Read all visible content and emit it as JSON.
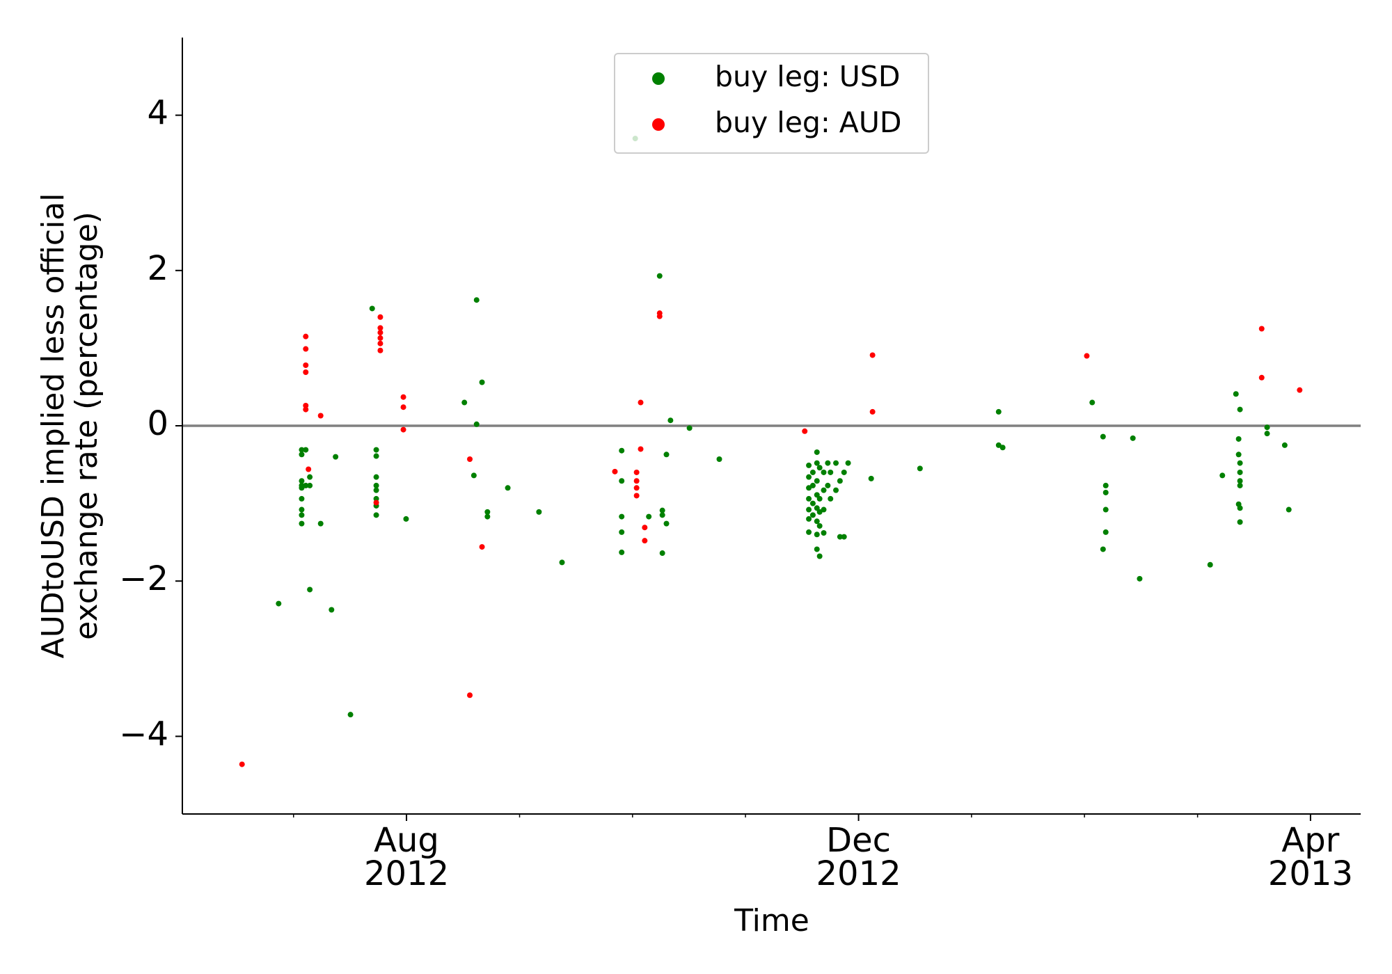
{
  "chart_data": {
    "type": "scatter",
    "xlabel": "Time",
    "ylabel": "AUDtoUSD implied less official\nexchange rate (percentage)",
    "xlim": [
      2012.418,
      2013.287
    ],
    "ylim": [
      -5,
      5
    ],
    "xticks": [
      {
        "value": 2012.5833,
        "label": "Aug\n2012"
      },
      {
        "value": 2012.9167,
        "label": "Dec\n2012"
      },
      {
        "value": 2013.25,
        "label": "Apr\n2013"
      }
    ],
    "xminorticks": [
      2012.5,
      2012.6667,
      2012.75,
      2012.8333,
      2013.0,
      2013.0833,
      2013.1667
    ],
    "yticks": [
      {
        "value": -4,
        "label": "−4"
      },
      {
        "value": -2,
        "label": "−2"
      },
      0,
      2,
      4
    ],
    "hline": 0,
    "hline_color": "#808080",
    "legend": "upper center",
    "series": [
      {
        "name": "buy leg: USD",
        "color": "#008000",
        "x": [
          2012.489,
          2012.506,
          2012.506,
          2012.506,
          2012.506,
          2012.506,
          2012.506,
          2012.506,
          2012.506,
          2012.506,
          2012.509,
          2012.509,
          2012.512,
          2012.512,
          2012.512,
          2012.531,
          2012.52,
          2012.528,
          2012.542,
          2012.558,
          2012.561,
          2012.561,
          2012.561,
          2012.561,
          2012.561,
          2012.561,
          2012.561,
          2012.561,
          2012.583,
          2012.626,
          2012.635,
          2012.635,
          2012.639,
          2012.633,
          2012.643,
          2012.643,
          2012.658,
          2012.681,
          2012.698,
          2012.752,
          2012.742,
          2012.742,
          2012.742,
          2012.742,
          2012.742,
          2012.77,
          2012.778,
          2012.775,
          2012.775,
          2012.772,
          2012.772,
          2012.772,
          2012.762,
          2012.792,
          2012.814,
          2012.88,
          2012.88,
          2012.88,
          2012.88,
          2012.88,
          2012.88,
          2012.88,
          2012.883,
          2012.883,
          2012.883,
          2012.883,
          2012.886,
          2012.886,
          2012.886,
          2012.886,
          2012.886,
          2012.886,
          2012.886,
          2012.886,
          2012.888,
          2012.888,
          2012.888,
          2012.888,
          2012.888,
          2012.891,
          2012.891,
          2012.891,
          2012.891,
          2012.894,
          2012.894,
          2012.896,
          2012.896,
          2012.9,
          2012.9,
          2012.903,
          2012.903,
          2012.906,
          2012.906,
          2012.909,
          2012.926,
          2012.962,
          2013.02,
          2013.02,
          2013.023,
          2013.089,
          2013.097,
          2013.097,
          2013.099,
          2013.099,
          2013.099,
          2013.099,
          2013.119,
          2013.124,
          2013.176,
          2013.185,
          2013.195,
          2013.197,
          2013.197,
          2013.197,
          2013.198,
          2013.198,
          2013.198,
          2013.198,
          2013.198,
          2013.198,
          2013.198,
          2013.218,
          2013.218,
          2013.231,
          2013.234
        ],
        "values": [
          -2.29,
          -0.31,
          -0.37,
          -0.71,
          -0.77,
          -0.8,
          -0.94,
          -1.08,
          -1.15,
          -1.26,
          -0.31,
          -0.77,
          -0.77,
          -0.66,
          -2.11,
          -0.4,
          -1.26,
          -2.37,
          -3.72,
          1.51,
          -0.31,
          -0.39,
          -0.66,
          -0.77,
          -0.83,
          -0.94,
          -1.03,
          -1.15,
          -1.2,
          0.3,
          1.62,
          0.02,
          0.56,
          -0.64,
          -1.11,
          -1.17,
          -0.8,
          -1.11,
          -1.76,
          3.7,
          -0.32,
          -0.71,
          -1.17,
          -1.37,
          -1.63,
          1.93,
          0.07,
          -0.37,
          -1.26,
          -1.09,
          -1.15,
          -1.64,
          -1.17,
          -0.03,
          -0.43,
          -0.51,
          -0.66,
          -0.8,
          -0.94,
          -1.08,
          -1.2,
          -1.37,
          -0.6,
          -0.77,
          -1.0,
          -1.15,
          -0.34,
          -0.48,
          -0.71,
          -0.89,
          -1.06,
          -1.23,
          -1.4,
          -1.59,
          -0.54,
          -0.94,
          -1.11,
          -1.29,
          -1.68,
          -0.6,
          -0.83,
          -1.08,
          -1.38,
          -0.48,
          -0.77,
          -0.6,
          -0.94,
          -0.48,
          -0.83,
          -0.71,
          -1.43,
          -0.6,
          -1.43,
          -0.48,
          -0.68,
          -0.55,
          0.18,
          -0.25,
          -0.28,
          0.3,
          -0.14,
          -1.59,
          -0.77,
          -0.86,
          -1.08,
          -1.37,
          -0.16,
          -1.97,
          -1.79,
          -0.64,
          0.41,
          -0.17,
          -0.37,
          -1.01,
          0.21,
          -0.48,
          -0.6,
          -0.71,
          -0.77,
          -1.06,
          -1.24,
          -0.02,
          -0.1,
          -0.25,
          -1.08
        ]
      },
      {
        "name": "buy leg: AUD",
        "color": "#ff0000",
        "x": [
          2012.462,
          2012.509,
          2012.509,
          2012.509,
          2012.509,
          2012.509,
          2012.509,
          2012.511,
          2012.52,
          2012.564,
          2012.564,
          2012.564,
          2012.564,
          2012.564,
          2012.564,
          2012.561,
          2012.581,
          2012.581,
          2012.581,
          2012.63,
          2012.63,
          2012.639,
          2012.737,
          2012.753,
          2012.753,
          2012.753,
          2012.753,
          2012.756,
          2012.756,
          2012.77,
          2012.77,
          2012.759,
          2012.759,
          2012.877,
          2012.927,
          2012.927,
          2013.085,
          2013.214,
          2013.214,
          2013.242
        ],
        "values": [
          -4.36,
          1.15,
          0.99,
          0.78,
          0.69,
          0.26,
          0.21,
          -0.56,
          0.13,
          1.4,
          1.26,
          1.2,
          1.13,
          1.06,
          0.97,
          -0.99,
          0.37,
          0.24,
          -0.05,
          -0.43,
          -3.47,
          -1.56,
          -0.59,
          -0.6,
          -0.71,
          -0.8,
          -0.9,
          -0.3,
          0.3,
          1.45,
          1.41,
          -1.31,
          -1.48,
          -0.07,
          0.91,
          0.18,
          0.9,
          1.25,
          0.62,
          0.46
        ]
      }
    ]
  }
}
